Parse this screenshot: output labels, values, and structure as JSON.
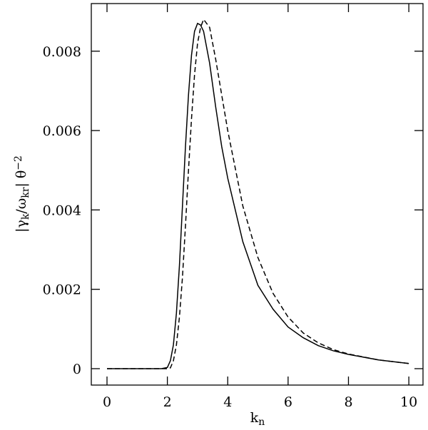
{
  "chart_data": {
    "type": "line",
    "xlabel": [
      "k",
      "n"
    ],
    "ylabel": [
      "|γ",
      "k",
      "/ω",
      "kr",
      "| θ",
      "−2"
    ],
    "x": [
      0,
      0.5,
      1,
      1.5,
      1.8,
      2,
      2.1,
      2.2,
      2.3,
      2.4,
      2.5,
      2.6,
      2.7,
      2.8,
      2.9,
      3,
      3.1,
      3.2,
      3.4,
      3.6,
      3.8,
      4,
      4.5,
      5,
      5.5,
      6,
      6.5,
      7,
      7.5,
      8,
      9,
      10
    ],
    "series": [
      {
        "color": "#000000",
        "linestyle": "solid",
        "values": [
          0,
          0,
          0,
          0,
          0,
          3e-05,
          0.0002,
          0.0006,
          0.0014,
          0.0026,
          0.0041,
          0.0056,
          0.0069,
          0.0079,
          0.0085,
          0.0087,
          0.00866,
          0.0085,
          0.0077,
          0.0066,
          0.0056,
          0.0048,
          0.0032,
          0.0021,
          0.0015,
          0.00105,
          0.00078,
          0.00058,
          0.00045,
          0.00036,
          0.00022,
          0.00013
        ]
      },
      {
        "color": "#000000",
        "linestyle": "dashed",
        "values": [
          0,
          0,
          0,
          0,
          0,
          0,
          2e-05,
          0.0002,
          0.0006,
          0.0013,
          0.0023,
          0.0036,
          0.005,
          0.0063,
          0.0074,
          0.0082,
          0.0086,
          0.0088,
          0.0086,
          0.0078,
          0.0069,
          0.006,
          0.0041,
          0.0028,
          0.0019,
          0.0013,
          0.0009,
          0.00065,
          0.00048,
          0.00037,
          0.00022,
          0.00013
        ]
      }
    ],
    "xlim": [
      -0.52,
      10.47
    ],
    "ylim": [
      -0.0004134,
      0.0092
    ],
    "xticks": [
      0,
      2,
      4,
      6,
      8,
      10
    ],
    "yticks": [
      0,
      0.002,
      0.004,
      0.006,
      0.008
    ]
  }
}
